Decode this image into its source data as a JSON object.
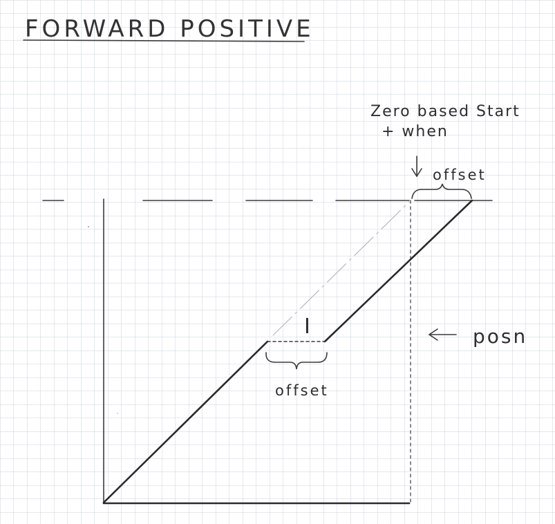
{
  "title": "FORWARD POSITIVE",
  "notes": {
    "zero_based_line1": "Zero based Start",
    "zero_based_line2": "+ when",
    "offset_top": "offset",
    "offset_bottom": "offset",
    "posn": "posn",
    "marker": "I"
  },
  "colors": {
    "paper": "#ffffff",
    "grid": "#c9d3de",
    "ink": "#2a2a2a"
  }
}
